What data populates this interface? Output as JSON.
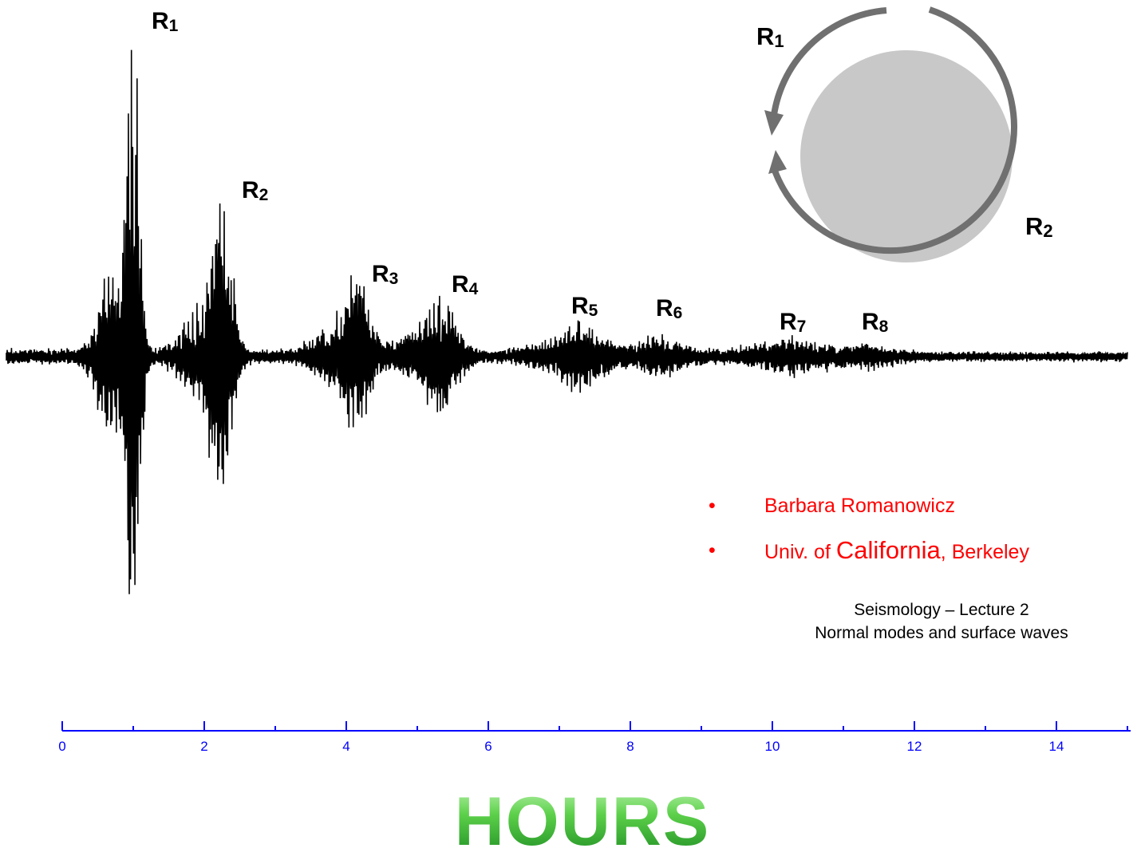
{
  "chart_data": {
    "type": "line",
    "x_unit_label": "HOURS",
    "xlim": [
      0,
      15
    ],
    "x_ticks": [
      0,
      2,
      4,
      6,
      8,
      10,
      12,
      14
    ],
    "x_minor_ticks": [
      1,
      3,
      5,
      7,
      9,
      11,
      13,
      15
    ],
    "axis_color": "#0000ff",
    "trace_color": "#000000",
    "grid": false,
    "series": [
      {
        "arrivals": [
          {
            "label": "R",
            "sub": "1",
            "time_hours": 1.0,
            "peak_amplitude": 1.0
          },
          {
            "label": "R",
            "sub": "2",
            "time_hours": 2.25,
            "peak_amplitude": 0.53
          },
          {
            "label": "R",
            "sub": "3",
            "time_hours": 4.15,
            "peak_amplitude": 0.25
          },
          {
            "label": "R",
            "sub": "4",
            "time_hours": 5.35,
            "peak_amplitude": 0.18
          },
          {
            "label": "R",
            "sub": "5",
            "time_hours": 7.3,
            "peak_amplitude": 0.09
          },
          {
            "label": "R",
            "sub": "6",
            "time_hours": 8.45,
            "peak_amplitude": 0.05
          },
          {
            "label": "R",
            "sub": "7",
            "time_hours": 10.2,
            "peak_amplitude": 0.04
          },
          {
            "label": "R",
            "sub": "8",
            "time_hours": 11.3,
            "peak_amplitude": 0.03
          }
        ]
      }
    ]
  },
  "inset": {
    "labels": [
      {
        "label": "R",
        "sub": "1"
      },
      {
        "label": "R",
        "sub": "2"
      }
    ],
    "earth_color": "#c8c8c8",
    "path_color": "#707070"
  },
  "credits": {
    "line1": "Barbara Romanowicz",
    "line2_prefix": "Univ. of ",
    "line2_big": "California",
    "line2_suffix": ", Berkeley",
    "bullet": "•",
    "color": "#ff0000"
  },
  "lecture": {
    "title": "Seismology – Lecture 2",
    "subtitle": "Normal modes and surface waves"
  },
  "hours_label": "HOURS"
}
